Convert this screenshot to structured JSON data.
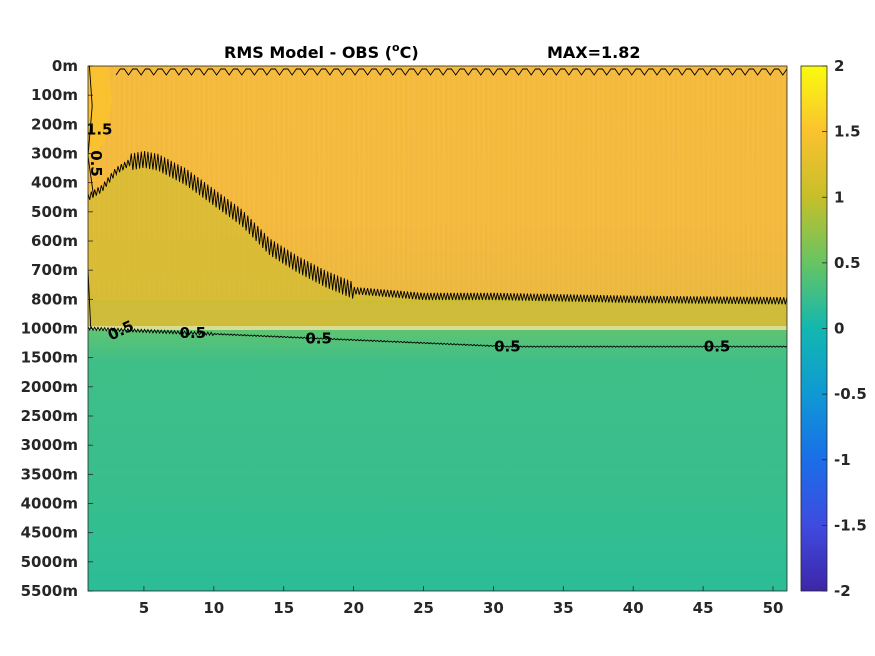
{
  "chart_data": {
    "type": "heatmap",
    "title": "RMS Model - OBS (",
    "title_unit_sup": "o",
    "title_unit_suffix": "C)",
    "max_label": "MAX=1.82",
    "x_ticks": [
      "5",
      "10",
      "15",
      "20",
      "25",
      "30",
      "35",
      "40",
      "45",
      "50"
    ],
    "x_values": [
      5,
      10,
      15,
      20,
      25,
      30,
      35,
      40,
      45,
      50
    ],
    "xlim": [
      1,
      51
    ],
    "y_ticks": [
      "0m",
      "100m",
      "200m",
      "300m",
      "400m",
      "500m",
      "600m",
      "700m",
      "800m",
      "1000m",
      "1500m",
      "2000m",
      "2500m",
      "3000m",
      "3500m",
      "4000m",
      "4500m",
      "5000m",
      "5500m"
    ],
    "colorbar_ticks": [
      "2",
      "1.5",
      "1",
      "0.5",
      "0",
      "-0.5",
      "-1",
      "-1.5",
      "-2"
    ],
    "colorbar_values": [
      2,
      1.5,
      1,
      0.5,
      0,
      -0.5,
      -1,
      -1.5,
      -2
    ],
    "clim": [
      -2,
      2
    ],
    "colormap": "parula",
    "contour_levels": [
      0.5,
      1,
      1.5
    ],
    "contour_labels": [
      {
        "text": "1.5",
        "x": 1.8,
        "depth": "200m"
      },
      {
        "text": "0.5",
        "x": 1.2,
        "depth": "300m"
      },
      {
        "text": "0.5",
        "x": 3.5,
        "depth": "1000m"
      },
      {
        "text": "0.5",
        "x": 8.5,
        "depth": "1000m"
      },
      {
        "text": "0.5",
        "x": 17.5,
        "depth": "1000m"
      },
      {
        "text": "0.5",
        "x": 31,
        "depth": "1000m"
      },
      {
        "text": "0.5",
        "x": 46,
        "depth": "1000m"
      }
    ],
    "contour_1_depth_profile": {
      "x": [
        1,
        2,
        3,
        4,
        5,
        6,
        8,
        10,
        12,
        14,
        16,
        18,
        20,
        25,
        30,
        40,
        51
      ],
      "depth_m": [
        450,
        420,
        360,
        330,
        320,
        330,
        380,
        450,
        520,
        620,
        680,
        730,
        770,
        790,
        790,
        800,
        810
      ]
    },
    "contour_05_depth": "between 1000m and 1500m",
    "field_summary": [
      {
        "depth_range": "0m-800m",
        "value_approx": 1.3
      },
      {
        "depth_range": "1000m-5500m",
        "value_approx": 0.35
      }
    ]
  }
}
